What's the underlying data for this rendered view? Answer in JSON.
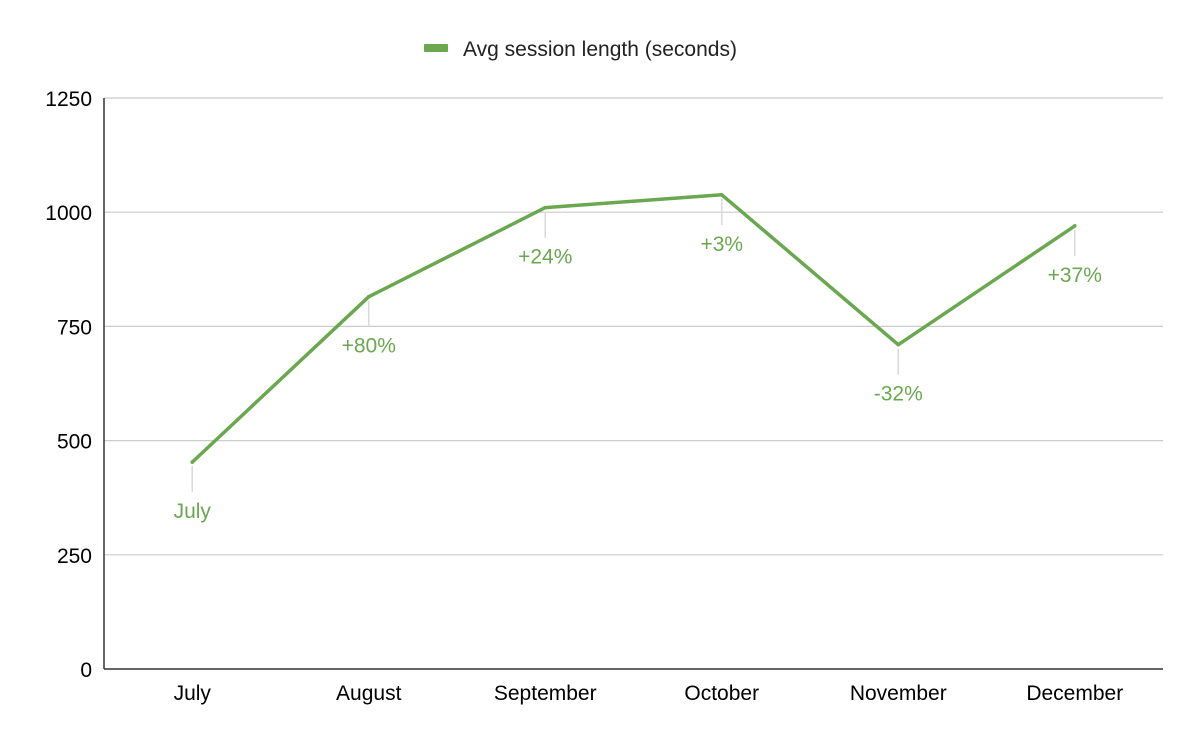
{
  "chart_data": {
    "type": "line",
    "title": "",
    "xlabel": "",
    "ylabel": "",
    "categories": [
      "July",
      "August",
      "September",
      "October",
      "November",
      "December"
    ],
    "series": [
      {
        "name": "Avg session length (seconds)",
        "values": [
          453,
          815,
          1010,
          1038,
          710,
          970
        ],
        "data_labels": [
          "July",
          "+80%",
          "+24%",
          "+3%",
          "-32%",
          "+37%"
        ]
      }
    ],
    "ylim": [
      0,
      1250
    ],
    "yticks": [
      0,
      250,
      500,
      750,
      1000,
      1250
    ],
    "grid": true,
    "legend_position": "top",
    "colors": {
      "series": "#6aa84f",
      "label": "#6aa84f",
      "grid": "#cccccc",
      "axis": "#333333",
      "leader": "#d9d9d9"
    }
  }
}
